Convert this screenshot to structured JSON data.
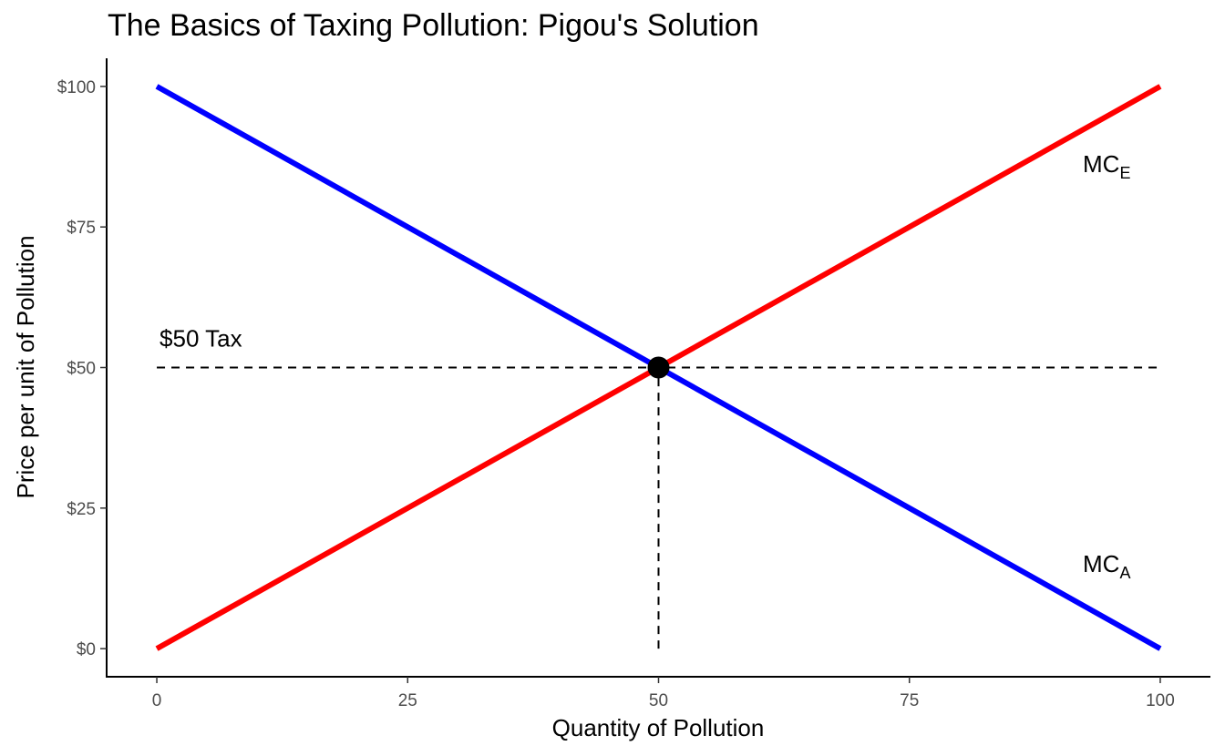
{
  "chart_data": {
    "type": "line",
    "title": "The Basics of Taxing Pollution: Pigou's Solution",
    "xlabel": "Quantity of Pollution",
    "ylabel": "Price per unit of Pollution",
    "xlim": [
      -5,
      105
    ],
    "ylim": [
      -5,
      105
    ],
    "x_ticks": [
      0,
      25,
      50,
      75,
      100
    ],
    "x_tick_labels": [
      "0",
      "25",
      "50",
      "75",
      "100"
    ],
    "y_ticks": [
      0,
      25,
      50,
      75,
      100
    ],
    "y_tick_labels": [
      "$0",
      "$25",
      "$50",
      "$75",
      "$100"
    ],
    "grid": false,
    "legend": "none",
    "series": [
      {
        "label_main": "MC",
        "label_sub": "A",
        "color": "#0000ff",
        "x": [
          0,
          100
        ],
        "y": [
          100,
          0
        ]
      },
      {
        "label_main": "MC",
        "label_sub": "E",
        "color": "#ff0000",
        "x": [
          0,
          100
        ],
        "y": [
          0,
          100
        ]
      }
    ],
    "reference_lines": [
      {
        "style": "dashed",
        "x": [
          0,
          100
        ],
        "y": [
          50,
          50
        ]
      },
      {
        "style": "dashed",
        "x": [
          50,
          50
        ],
        "y": [
          0,
          50
        ]
      }
    ],
    "equilibrium_point": {
      "x": 50,
      "y": 50,
      "color": "#000000"
    },
    "annotations": [
      {
        "text": "$50 Tax",
        "x": 0,
        "y": 55
      }
    ]
  }
}
